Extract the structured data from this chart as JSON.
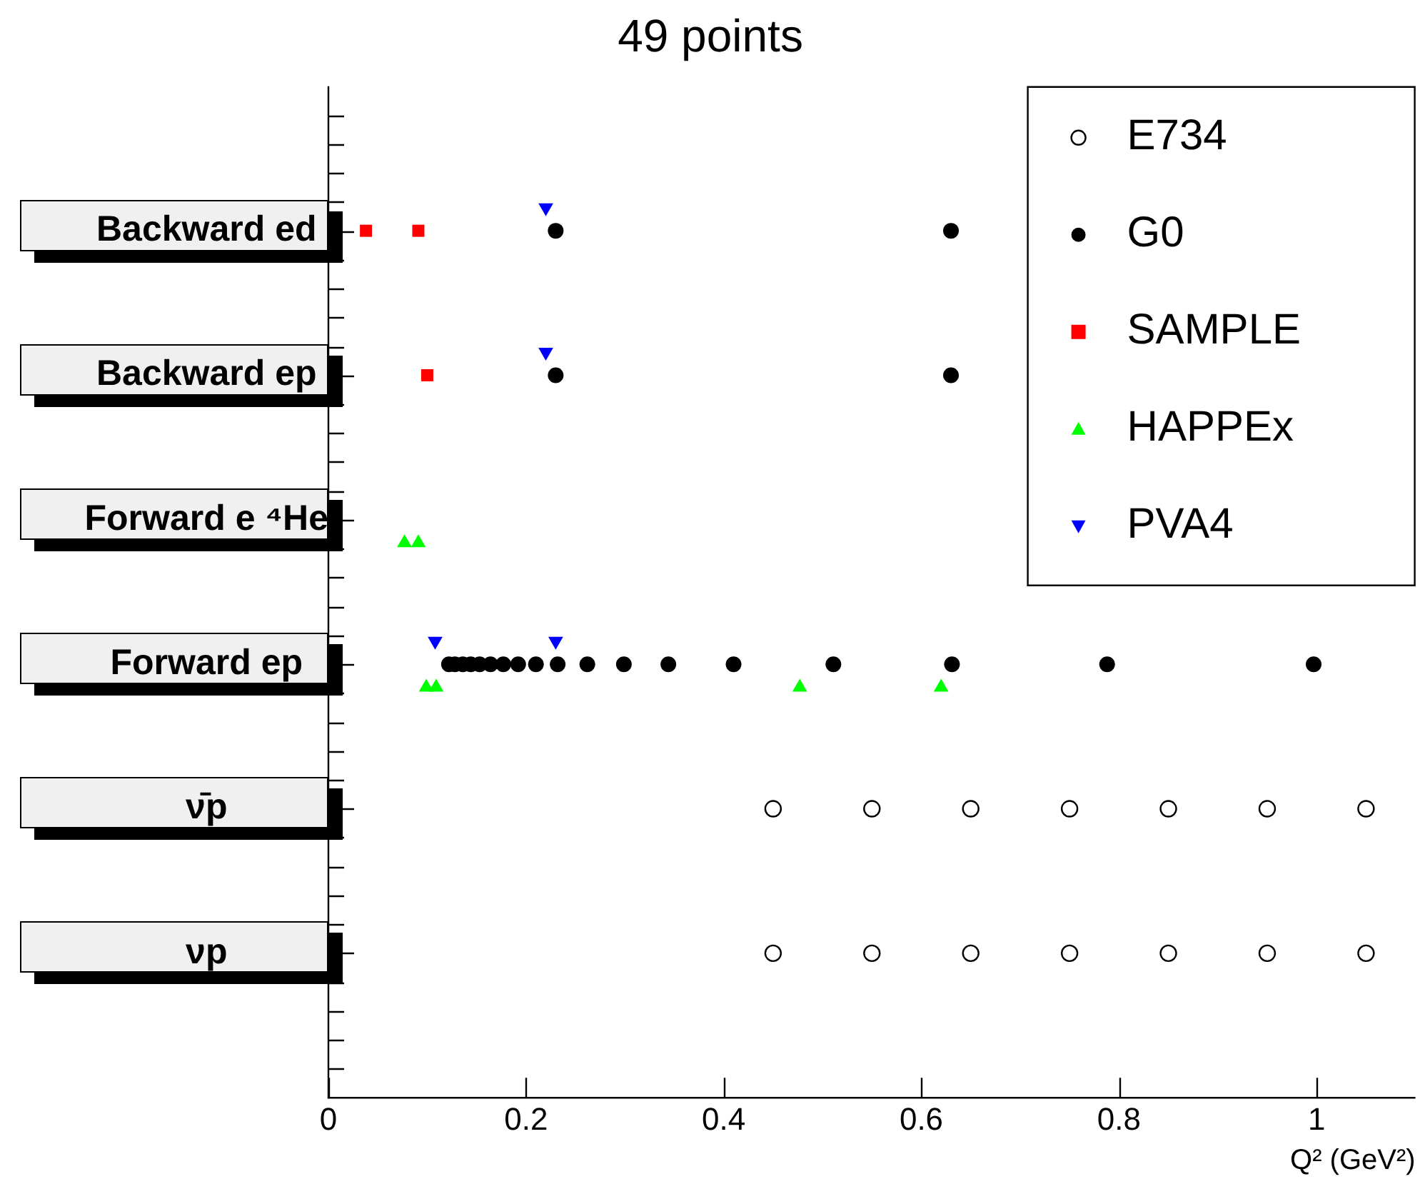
{
  "chart_data": {
    "type": "scatter",
    "title": "49 points",
    "xlabel": "Q² (GeV²)",
    "xlim": [
      0,
      1.1
    ],
    "xticks": [
      0,
      0.2,
      0.4,
      0.6,
      0.8,
      1
    ],
    "categories": [
      "Backward ed",
      "Backward ep",
      "Forward e ⁴He",
      "Forward ep",
      "ν̄p",
      "νp"
    ],
    "orientation": "horizontal",
    "legend": "top right",
    "series": [
      {
        "name": "E734",
        "color": "#000000",
        "marker": "circle-open",
        "values": [
          0.45,
          0.55,
          0.65,
          0.75,
          0.85,
          0.95,
          1.05,
          0.45,
          0.55,
          0.65,
          0.75,
          0.85,
          0.95,
          1.05
        ],
        "x": [
          "ν̄p",
          "ν̄p",
          "ν̄p",
          "ν̄p",
          "ν̄p",
          "ν̄p",
          "ν̄p",
          "νp",
          "νp",
          "νp",
          "νp",
          "νp",
          "νp",
          "νp"
        ]
      },
      {
        "name": "G0",
        "color": "#000000",
        "marker": "circle",
        "values": [
          0.23,
          0.63,
          0.23,
          0.63,
          0.122,
          0.128,
          0.136,
          0.144,
          0.153,
          0.164,
          0.177,
          0.192,
          0.21,
          0.232,
          0.262,
          0.299,
          0.344,
          0.41,
          0.511,
          0.631,
          0.788,
          0.997
        ],
        "x": [
          "Backward ed",
          "Backward ed",
          "Backward ep",
          "Backward ep",
          "Forward ep",
          "Forward ep",
          "Forward ep",
          "Forward ep",
          "Forward ep",
          "Forward ep",
          "Forward ep",
          "Forward ep",
          "Forward ep",
          "Forward ep",
          "Forward ep",
          "Forward ep",
          "Forward ep",
          "Forward ep",
          "Forward ep",
          "Forward ep",
          "Forward ep",
          "Forward ep"
        ]
      },
      {
        "name": "SAMPLE",
        "color": "#ff0000",
        "marker": "square",
        "values": [
          0.038,
          0.091,
          0.1
        ],
        "x": [
          "Backward ed",
          "Backward ed",
          "Backward ep"
        ]
      },
      {
        "name": "HAPPEx",
        "color": "#00ff00",
        "marker": "triangle",
        "values": [
          0.077,
          0.091,
          0.099,
          0.109,
          0.477,
          0.62
        ],
        "x": [
          "Forward e ⁴He",
          "Forward e ⁴He",
          "Forward ep",
          "Forward ep",
          "Forward ep",
          "Forward ep"
        ]
      },
      {
        "name": "PVA4",
        "color": "#0000ff",
        "marker": "triangle-down",
        "values": [
          0.22,
          0.22,
          0.108,
          0.23
        ],
        "x": [
          "Backward ed",
          "Backward ep",
          "Forward ep",
          "Forward ep"
        ]
      }
    ]
  }
}
